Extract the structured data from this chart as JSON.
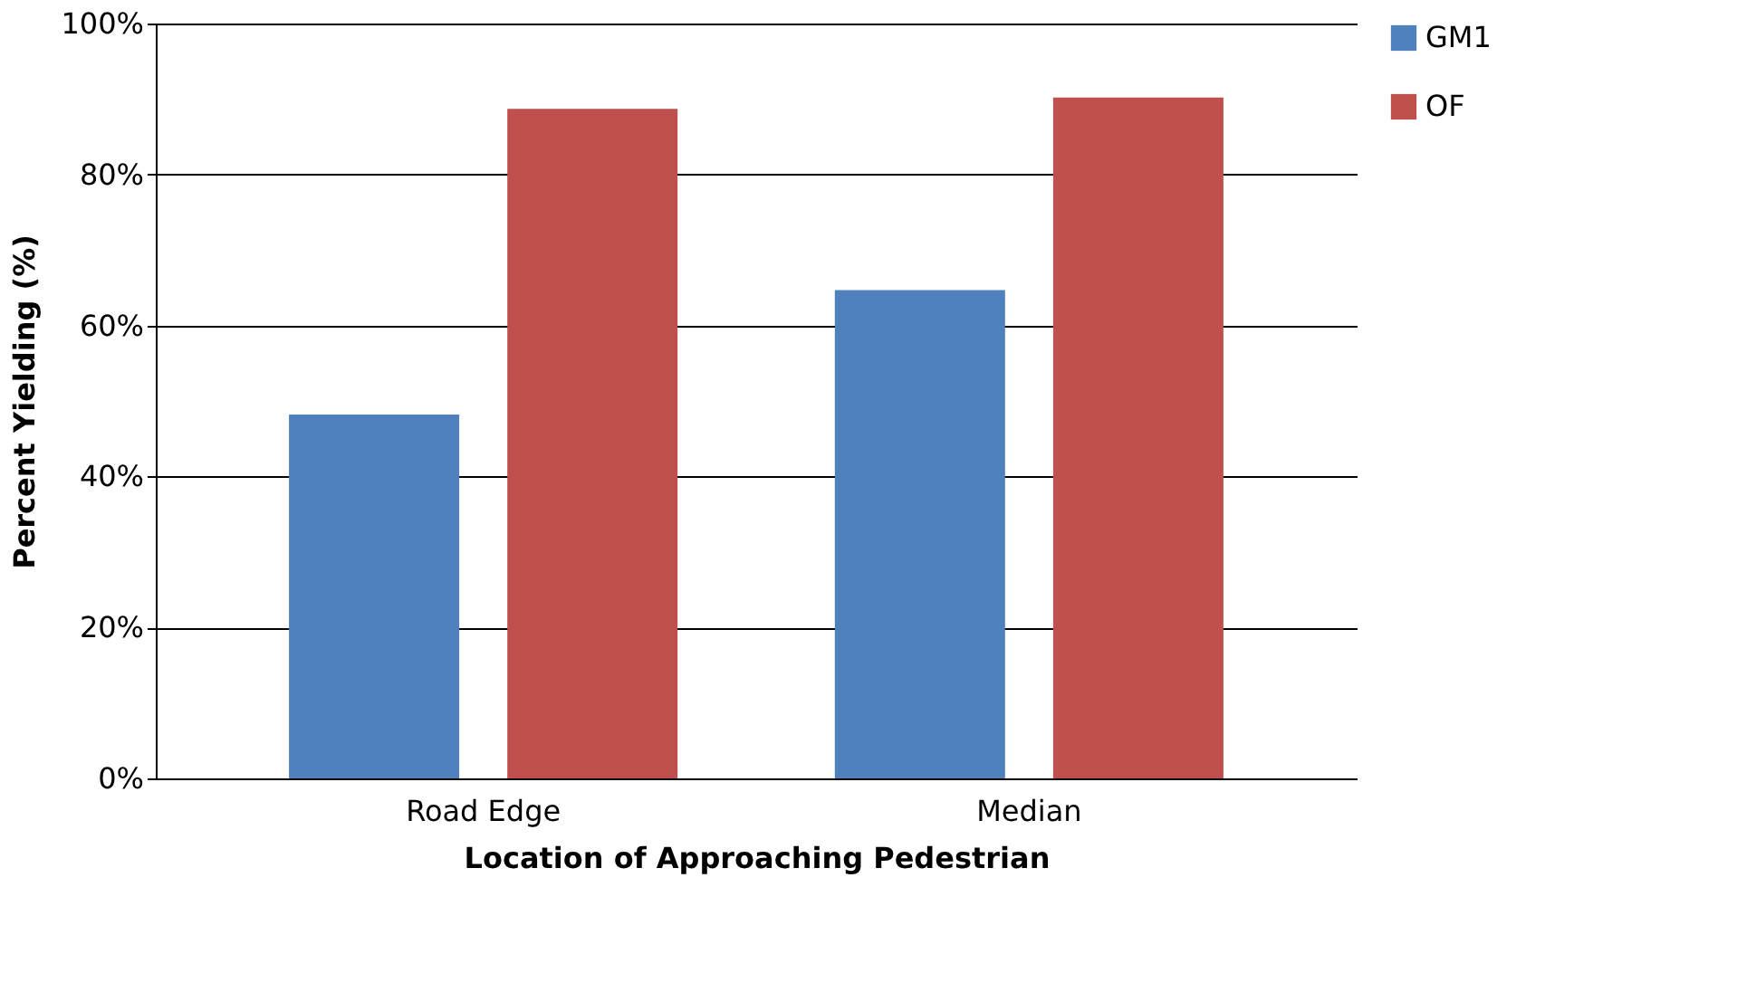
{
  "chart_data": {
    "type": "bar",
    "xlabel": "Location of Approaching Pedestrian",
    "ylabel": "Percent Yielding (%)",
    "categories": [
      "Road Edge",
      "Median"
    ],
    "series": [
      {
        "name": "GM1",
        "color": "#4f81bd",
        "values": [
          48.2,
          64.7
        ]
      },
      {
        "name": "OF",
        "color": "#c0504d",
        "values": [
          88.7,
          90.2
        ]
      }
    ],
    "ylim": [
      0,
      100
    ],
    "yticks": [
      {
        "value": 0,
        "label": "0%"
      },
      {
        "value": 20,
        "label": "20%"
      },
      {
        "value": 40,
        "label": "40%"
      },
      {
        "value": 60,
        "label": "60%"
      },
      {
        "value": 80,
        "label": "80%"
      },
      {
        "value": 100,
        "label": "100%"
      }
    ],
    "grid": "y",
    "legend": "right"
  }
}
